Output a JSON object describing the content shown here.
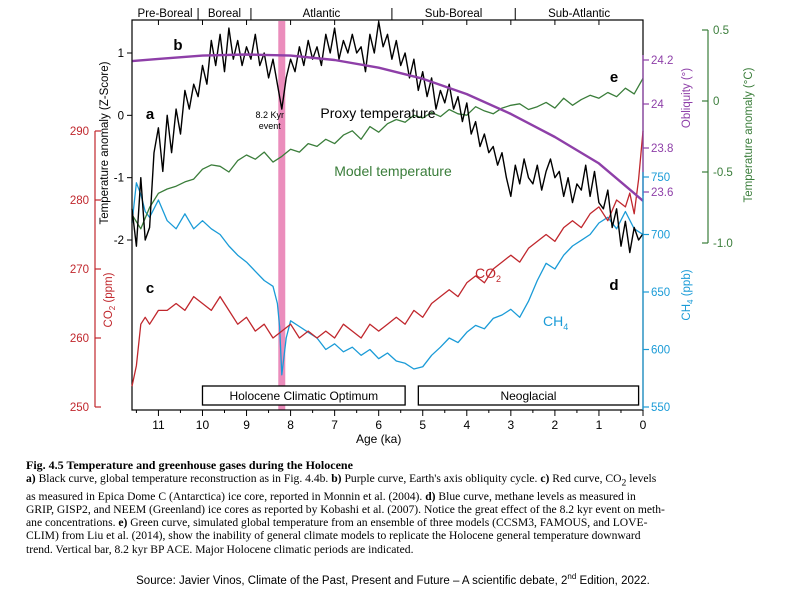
{
  "chart_data": {
    "type": "line",
    "x": {
      "label": "Age (ka)",
      "ticks": [
        11,
        10,
        9,
        8,
        7,
        6,
        5,
        4,
        3,
        2,
        1,
        0
      ],
      "range": [
        11.6,
        0
      ]
    },
    "periods": [
      "Pre-Boreal",
      "Boreal",
      "Atlantic",
      "Sub-Boreal",
      "Sub-Atlantic"
    ],
    "period_boundaries_ka": [
      11.6,
      10.1,
      8.9,
      5.7,
      2.9,
      0
    ],
    "bands": [
      {
        "label": "Holocene Climatic Optimum",
        "from": 10.0,
        "to": 5.4
      },
      {
        "label": "Neoglacial",
        "from": 5.1,
        "to": 0.1
      }
    ],
    "event": {
      "label_line1": "8.2 Kyr",
      "label_line2": "event",
      "age_ka": 8.2,
      "color": "#e879b0"
    },
    "panel_letters": [
      "a",
      "b",
      "c",
      "d",
      "e"
    ],
    "axes": {
      "z_score": {
        "label": "Temperature anomaly (Z-Score)",
        "ticks": [
          "1",
          "0",
          "-1",
          "-2"
        ],
        "range": [
          -2.3,
          1.5
        ],
        "color": "#000000"
      },
      "co2": {
        "label": "CO2 (ppm)",
        "label_main": "CO",
        "label_sub": "2",
        "label_unit": " (ppm)",
        "ticks": [
          "290",
          "280",
          "270",
          "260",
          "250"
        ],
        "range": [
          250,
          290
        ],
        "color": "#c0272d"
      },
      "obliquity": {
        "label": "Obliquity (°)",
        "ticks": [
          "24.2",
          "24",
          "23.8",
          "23.6"
        ],
        "range": [
          23.5,
          24.3
        ],
        "color": "#8e3fa8"
      },
      "ch4": {
        "label": "CH4 (ppb)",
        "label_main": "CH",
        "label_sub": "4",
        "label_unit": " (ppb)",
        "ticks": [
          "750",
          "700",
          "650",
          "600",
          "550"
        ],
        "range": [
          550,
          755
        ],
        "color": "#1a9bd7"
      },
      "temp_c": {
        "label": "Temperature anomaly (°C)",
        "ticks": [
          "0.5",
          "0",
          "-0.5",
          "-1.0"
        ],
        "range": [
          -1.0,
          0.5
        ],
        "color": "#3a7d3a"
      }
    },
    "series": [
      {
        "name": "Proxy temperature",
        "color": "#000000",
        "axis": "z_score",
        "x": [
          11.6,
          11.5,
          11.4,
          11.3,
          11.2,
          11.1,
          11.0,
          10.9,
          10.8,
          10.7,
          10.6,
          10.5,
          10.4,
          10.3,
          10.2,
          10.1,
          10.0,
          9.9,
          9.8,
          9.7,
          9.6,
          9.5,
          9.4,
          9.3,
          9.2,
          9.1,
          9.0,
          8.9,
          8.8,
          8.7,
          8.6,
          8.5,
          8.4,
          8.3,
          8.2,
          8.1,
          8.0,
          7.9,
          7.8,
          7.7,
          7.6,
          7.5,
          7.4,
          7.3,
          7.2,
          7.1,
          7.0,
          6.9,
          6.8,
          6.7,
          6.6,
          6.5,
          6.4,
          6.3,
          6.2,
          6.1,
          6.0,
          5.9,
          5.8,
          5.7,
          5.6,
          5.5,
          5.4,
          5.3,
          5.2,
          5.1,
          5.0,
          4.9,
          4.8,
          4.7,
          4.6,
          4.5,
          4.4,
          4.3,
          4.2,
          4.1,
          4.0,
          3.9,
          3.8,
          3.7,
          3.6,
          3.5,
          3.4,
          3.3,
          3.2,
          3.1,
          3.0,
          2.9,
          2.8,
          2.7,
          2.6,
          2.5,
          2.4,
          2.3,
          2.2,
          2.1,
          2.0,
          1.9,
          1.8,
          1.7,
          1.6,
          1.5,
          1.4,
          1.3,
          1.2,
          1.1,
          1.0,
          0.9,
          0.8,
          0.7,
          0.6,
          0.5,
          0.4,
          0.3,
          0.2,
          0.1,
          0.0
        ],
        "values": [
          -1.5,
          -2.1,
          -1.0,
          -2.0,
          -1.8,
          -0.6,
          -0.2,
          -0.9,
          0.0,
          -0.6,
          0.1,
          -0.3,
          0.4,
          0.1,
          0.5,
          0.3,
          0.8,
          0.5,
          1.2,
          0.8,
          1.3,
          0.7,
          1.4,
          0.9,
          1.2,
          0.8,
          1.1,
          0.9,
          1.3,
          0.8,
          1.0,
          0.6,
          0.9,
          0.5,
          0.1,
          0.6,
          0.9,
          0.7,
          1.1,
          0.8,
          1.2,
          0.9,
          1.1,
          0.8,
          1.3,
          1.0,
          1.4,
          0.9,
          1.2,
          1.0,
          1.3,
          1.0,
          1.1,
          0.7,
          1.3,
          1.0,
          1.5,
          1.1,
          1.3,
          0.9,
          1.2,
          0.8,
          1.0,
          0.6,
          0.9,
          0.4,
          0.7,
          0.3,
          0.6,
          0.1,
          0.4,
          0.2,
          0.5,
          0.1,
          0.3,
          -0.1,
          0.2,
          -0.3,
          -0.1,
          -0.5,
          -0.3,
          -0.6,
          -0.5,
          -0.8,
          -0.6,
          -1.0,
          -1.3,
          -0.8,
          -1.1,
          -0.7,
          -1.0,
          -1.1,
          -0.8,
          -1.2,
          -0.9,
          -0.7,
          -1.0,
          -0.9,
          -1.3,
          -1.0,
          -1.4,
          -1.1,
          -1.2,
          -0.8,
          -1.3,
          -0.9,
          -1.4,
          -1.5,
          -1.2,
          -1.8,
          -1.5,
          -2.1,
          -1.7,
          -2.2,
          -1.8,
          -2.0,
          -1.9
        ]
      },
      {
        "name": "Obliquity",
        "color": "#8e3fa8",
        "axis": "obliquity",
        "x": [
          11.6,
          11.0,
          10.0,
          9.0,
          8.0,
          7.0,
          6.0,
          5.0,
          4.0,
          3.0,
          2.0,
          1.0,
          0.0
        ],
        "values": [
          24.195,
          24.205,
          24.22,
          24.225,
          24.22,
          24.2,
          24.165,
          24.115,
          24.045,
          23.955,
          23.85,
          23.73,
          23.56
        ]
      },
      {
        "name": "Model temperature",
        "color": "#3a7d3a",
        "axis": "temp_c",
        "x": [
          11.6,
          11.4,
          11.2,
          11.0,
          10.8,
          10.6,
          10.4,
          10.2,
          10.0,
          9.8,
          9.6,
          9.4,
          9.2,
          9.0,
          8.8,
          8.6,
          8.4,
          8.2,
          8.0,
          7.8,
          7.6,
          7.4,
          7.2,
          7.0,
          6.8,
          6.6,
          6.4,
          6.2,
          6.0,
          5.8,
          5.6,
          5.4,
          5.2,
          5.0,
          4.8,
          4.6,
          4.4,
          4.2,
          4.0,
          3.8,
          3.6,
          3.4,
          3.2,
          3.0,
          2.8,
          2.6,
          2.4,
          2.2,
          2.0,
          1.8,
          1.6,
          1.4,
          1.2,
          1.0,
          0.8,
          0.6,
          0.4,
          0.2,
          0.0
        ],
        "values": [
          -0.8,
          -0.9,
          -0.75,
          -0.65,
          -0.62,
          -0.6,
          -0.57,
          -0.55,
          -0.48,
          -0.45,
          -0.46,
          -0.5,
          -0.42,
          -0.38,
          -0.41,
          -0.36,
          -0.43,
          -0.39,
          -0.34,
          -0.36,
          -0.3,
          -0.32,
          -0.27,
          -0.3,
          -0.24,
          -0.21,
          -0.27,
          -0.18,
          -0.22,
          -0.16,
          -0.13,
          -0.15,
          -0.1,
          -0.12,
          -0.08,
          -0.11,
          -0.06,
          -0.09,
          -0.1,
          -0.04,
          -0.07,
          -0.09,
          -0.05,
          -0.03,
          -0.02,
          -0.06,
          -0.04,
          -0.01,
          -0.05,
          0.02,
          -0.03,
          0.01,
          0.04,
          0.02,
          0.06,
          0.03,
          0.09,
          0.05,
          0.16
        ]
      },
      {
        "name": "CO2",
        "color": "#c0272d",
        "axis": "co2",
        "x": [
          11.6,
          11.5,
          11.4,
          11.3,
          11.2,
          11.0,
          10.8,
          10.6,
          10.4,
          10.2,
          10.0,
          9.8,
          9.6,
          9.4,
          9.2,
          9.0,
          8.8,
          8.6,
          8.4,
          8.2,
          8.0,
          7.8,
          7.6,
          7.4,
          7.2,
          7.0,
          6.8,
          6.6,
          6.4,
          6.2,
          6.0,
          5.8,
          5.6,
          5.4,
          5.2,
          5.0,
          4.8,
          4.6,
          4.4,
          4.2,
          4.0,
          3.8,
          3.6,
          3.4,
          3.2,
          3.0,
          2.8,
          2.6,
          2.4,
          2.2,
          2.0,
          1.8,
          1.6,
          1.4,
          1.2,
          1.0,
          0.8,
          0.6,
          0.4,
          0.3,
          0.2,
          0.1,
          0.0
        ],
        "values": [
          253,
          256,
          262,
          263,
          262,
          264,
          264,
          265,
          264,
          266,
          265,
          264,
          266,
          264,
          262,
          263,
          261,
          262,
          260,
          261,
          262,
          260,
          261,
          260,
          261,
          260,
          262,
          261,
          260,
          262,
          261,
          262,
          263,
          262,
          264,
          263,
          265,
          266,
          267,
          266,
          268,
          269,
          268,
          270,
          271,
          272,
          271,
          273,
          274,
          275,
          274,
          276,
          277,
          276,
          278,
          279,
          277,
          280,
          279,
          281,
          278,
          283,
          290
        ]
      },
      {
        "name": "CH4",
        "color": "#1a9bd7",
        "axis": "ch4",
        "x": [
          11.6,
          11.5,
          11.4,
          11.3,
          11.2,
          11.0,
          10.8,
          10.6,
          10.4,
          10.2,
          10.0,
          9.8,
          9.6,
          9.4,
          9.2,
          9.0,
          8.8,
          8.6,
          8.4,
          8.3,
          8.25,
          8.2,
          8.1,
          8.0,
          7.8,
          7.6,
          7.4,
          7.2,
          7.0,
          6.8,
          6.6,
          6.4,
          6.2,
          6.0,
          5.8,
          5.6,
          5.4,
          5.2,
          5.0,
          4.8,
          4.6,
          4.4,
          4.2,
          4.0,
          3.8,
          3.6,
          3.4,
          3.2,
          3.0,
          2.8,
          2.6,
          2.4,
          2.2,
          2.0,
          1.8,
          1.6,
          1.4,
          1.2,
          1.0,
          0.8,
          0.6,
          0.4,
          0.2,
          0.0
        ],
        "values": [
          710,
          745,
          735,
          720,
          715,
          730,
          712,
          705,
          718,
          705,
          712,
          705,
          700,
          690,
          682,
          676,
          668,
          660,
          655,
          640,
          620,
          578,
          610,
          625,
          620,
          615,
          610,
          600,
          605,
          598,
          602,
          595,
          600,
          592,
          597,
          590,
          588,
          583,
          585,
          595,
          602,
          610,
          606,
          615,
          621,
          618,
          627,
          630,
          635,
          628,
          642,
          660,
          675,
          670,
          682,
          690,
          695,
          700,
          710,
          715,
          705,
          720,
          705,
          700
        ]
      }
    ],
    "annotations": {
      "proxy": "Proxy temperature",
      "model": "Model temperature",
      "co2_main": "CO",
      "co2_sub": "2",
      "ch4_main": "CH",
      "ch4_sub": "4"
    }
  },
  "caption": {
    "head": "Fig. 4.5 Temperature and greenhouse gases during the Holocene",
    "lines": [
      [
        {
          "b": "a)"
        },
        {
          "t": " Black curve, global temperature reconstruction as in Fig. 4.4b. "
        },
        {
          "b": "b)"
        },
        {
          "t": " Purple curve, Earth's axis obliquity cycle. "
        },
        {
          "b": "c)"
        },
        {
          "t": " Red curve, CO"
        },
        {
          "sub": "2"
        },
        {
          "t": " levels"
        }
      ],
      [
        {
          "t": "as measured in Epica Dome C (Antarctica) ice core, reported in Monnin et al. (2004). "
        },
        {
          "b": "d)"
        },
        {
          "t": " Blue curve, methane levels as measured in"
        }
      ],
      [
        {
          "t": "GRIP, GISP2, and NEEM (Greenland) ice cores as reported by Kobashi et al. (2007). Notice the great effect of the 8.2 kyr event on meth-"
        }
      ],
      [
        {
          "t": "ane concentrations. "
        },
        {
          "b": "e)"
        },
        {
          "t": " Green curve, simulated global temperature from an ensemble of three models (CCSM3, FAMOUS, and LOVE-"
        }
      ],
      [
        {
          "t": "CLIM) from Liu et al. (2014), show the inability of general climate models to replicate the Holocene general temperature downward"
        }
      ],
      [
        {
          "t": "trend. Vertical bar, 8.2 kyr BP ACE. Major Holocene climatic periods are indicated."
        }
      ]
    ]
  },
  "source": {
    "before": "Source: Javier Vinos, Climate of the Past, Present and Future – A scientific debate, 2",
    "sup": "nd",
    "after": " Edition, 2022."
  }
}
